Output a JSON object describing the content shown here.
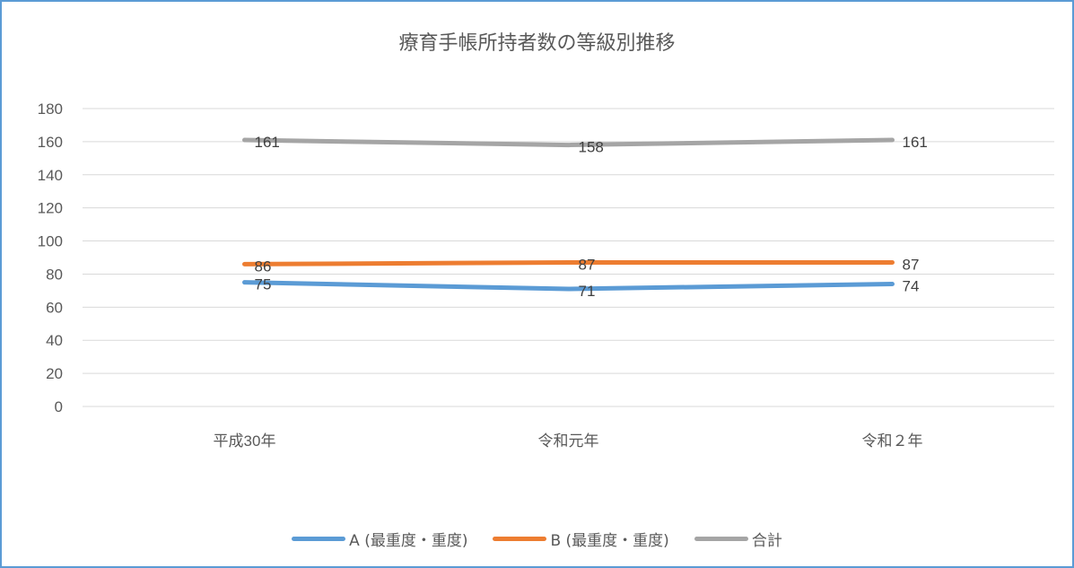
{
  "chart_data": {
    "type": "line",
    "title": "療育手帳所持者数の等級別推移",
    "categories": [
      "平成30年",
      "令和元年",
      "令和２年"
    ],
    "series": [
      {
        "name": "A (最重度・重度)",
        "values": [
          75,
          71,
          74
        ],
        "color": "#5b9bd5"
      },
      {
        "name": "B (最重度・重度)",
        "values": [
          86,
          87,
          87
        ],
        "color": "#ed7d31"
      },
      {
        "name": "合計",
        "values": [
          161,
          158,
          161
        ],
        "color": "#a5a5a5"
      }
    ],
    "ylim": [
      0,
      180
    ],
    "yticks": [
      0,
      20,
      40,
      60,
      80,
      100,
      120,
      140,
      160,
      180
    ],
    "grid": true,
    "legend_position": "bottom",
    "data_labels": true
  }
}
